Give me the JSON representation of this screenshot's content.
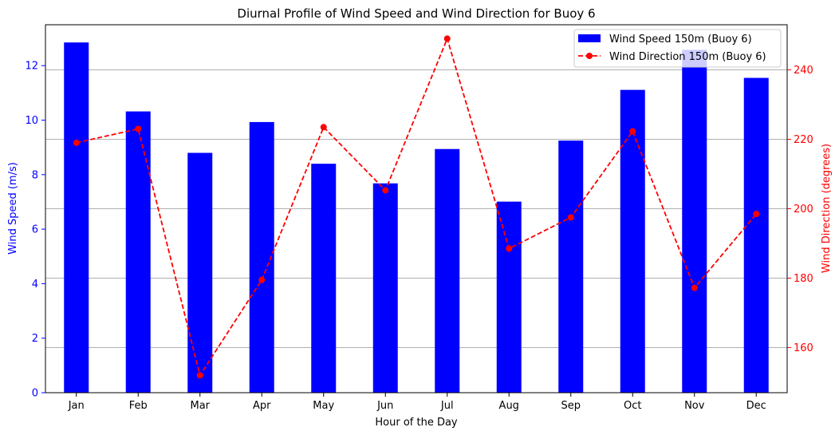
{
  "chart_data": {
    "type": "bar",
    "title": "Diurnal Profile of Wind Speed and Wind Direction for Buoy 6",
    "xlabel": "Hour of the Day",
    "ylabel": "Wind Speed (m/s)",
    "y2label": "Wind Direction (degrees)",
    "categories": [
      "Jan",
      "Feb",
      "Mar",
      "Apr",
      "May",
      "Jun",
      "Jul",
      "Aug",
      "Sep",
      "Oct",
      "Nov",
      "Dec"
    ],
    "ylim": [
      0,
      13.5
    ],
    "yticks": [
      "0",
      "2",
      "4",
      "6",
      "8",
      "10",
      "12"
    ],
    "y2lim": [
      147,
      253
    ],
    "y2ticks": [
      "160",
      "180",
      "200",
      "220",
      "240"
    ],
    "grid": "horizontal (right axis)",
    "legend_position": "top-right",
    "series": [
      {
        "name": "Wind Speed 150m (Buoy 6)",
        "type": "bar",
        "axis": "left",
        "color": "#0000ff",
        "values": [
          12.85,
          10.32,
          8.8,
          9.93,
          8.4,
          7.68,
          8.94,
          7.01,
          9.25,
          11.11,
          12.58,
          11.55
        ]
      },
      {
        "name": "Wind Direction 150m (Buoy 6)",
        "type": "line",
        "axis": "right",
        "color": "#ff0000",
        "linestyle": "dashed",
        "marker": "circle",
        "values": [
          219.0,
          223.0,
          152.0,
          179.5,
          223.5,
          205.3,
          249.0,
          188.5,
          197.5,
          222.3,
          177.2,
          198.5
        ]
      }
    ]
  }
}
